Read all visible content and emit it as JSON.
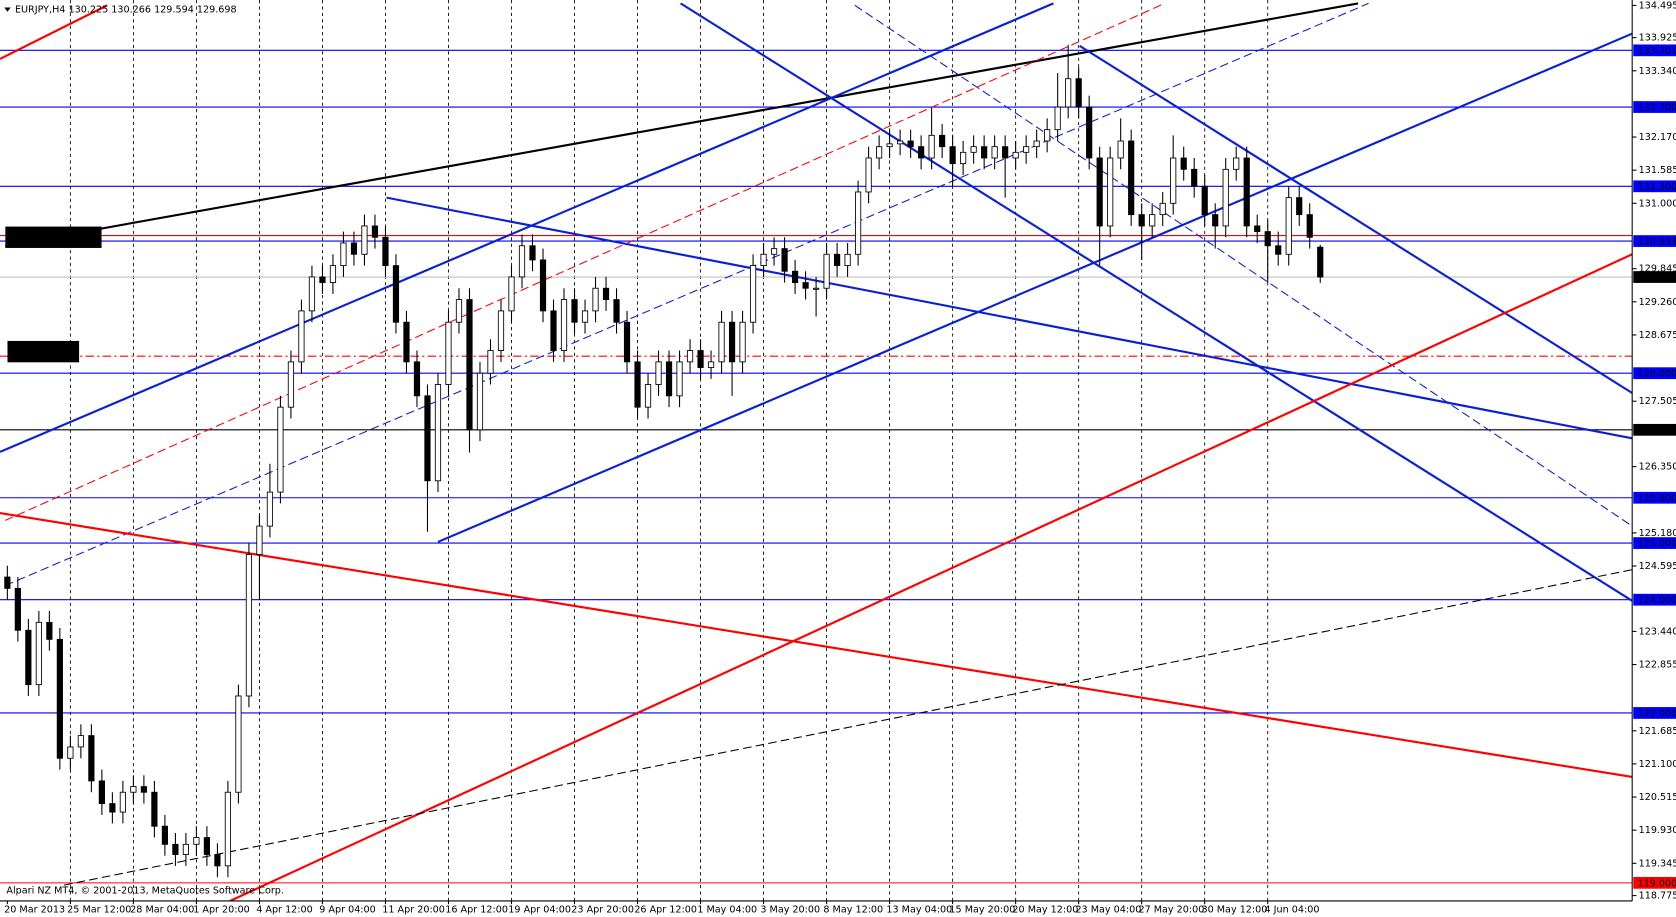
{
  "chart_data": {
    "type": "candlestick",
    "title": "EURJPY,H4  130.225 130.266 129.594 129.698",
    "annotations": [
      "Alpari NZ MT4, © 2001-2013, MetaQuotes Software Corp."
    ],
    "categories": [
      "20 Mar 2013",
      null,
      null,
      null,
      null,
      null,
      "25 Mar 12:00",
      null,
      null,
      null,
      null,
      null,
      "28 Mar 04:00",
      null,
      null,
      null,
      null,
      null,
      "1 Apr 20:00",
      null,
      null,
      null,
      null,
      null,
      "4 Apr 12:00",
      null,
      null,
      null,
      null,
      null,
      "9 Apr 04:00",
      null,
      null,
      null,
      null,
      null,
      "11 Apr 20:00",
      null,
      null,
      null,
      null,
      null,
      "16 Apr 12:00",
      null,
      null,
      null,
      null,
      null,
      "19 Apr 04:00",
      null,
      null,
      null,
      null,
      null,
      "23 Apr 20:00",
      null,
      null,
      null,
      null,
      null,
      "26 Apr 12:00",
      null,
      null,
      null,
      null,
      null,
      "1 May 04:00",
      null,
      null,
      null,
      null,
      null,
      "3 May 20:00",
      null,
      null,
      null,
      null,
      null,
      "8 May 12:00",
      null,
      null,
      null,
      null,
      null,
      "13 May 04:00",
      null,
      null,
      null,
      null,
      null,
      "15 May 20:00",
      null,
      null,
      null,
      null,
      null,
      "20 May 12:00",
      null,
      null,
      null,
      null,
      null,
      "23 May 04:00",
      null,
      null,
      null,
      null,
      null,
      "27 May 20:00",
      null,
      null,
      null,
      null,
      null,
      "30 May 12:00",
      null,
      null,
      null,
      null,
      null,
      "4 Jun 04:00",
      null,
      null,
      null,
      null,
      null
    ],
    "open": [
      124.4,
      124.2,
      123.46,
      122.5,
      123.6,
      123.3,
      121.2,
      121.4,
      121.6,
      120.8,
      120.4,
      120.25,
      120.6,
      120.7,
      120.6,
      120.0,
      119.68,
      119.5,
      119.68,
      119.8,
      119.5,
      119.3,
      120.6,
      122.3,
      124.8,
      125.3,
      125.9,
      127.4,
      128.2,
      129.1,
      129.7,
      129.6,
      129.9,
      130.3,
      130.1,
      130.6,
      130.4,
      129.9,
      128.9,
      128.2,
      127.6,
      126.1,
      127.8,
      128.9,
      129.3,
      127.0,
      128.0,
      128.4,
      129.1,
      129.7,
      130.25,
      130.0,
      129.1,
      128.4,
      129.3,
      128.9,
      129.1,
      129.5,
      129.3,
      128.9,
      128.2,
      127.4,
      127.8,
      128.2,
      127.6,
      128.2,
      128.4,
      128.1,
      128.2,
      128.9,
      128.2,
      128.9,
      129.9,
      130.1,
      130.2,
      129.8,
      129.6,
      129.5,
      129.5,
      130.1,
      129.9,
      130.1,
      131.2,
      131.8,
      132.0,
      132.05,
      132.1,
      132.0,
      131.8,
      132.2,
      132.0,
      131.7,
      131.9,
      132.0,
      131.8,
      132.0,
      131.8,
      131.9,
      132.0,
      132.1,
      132.3,
      132.7,
      133.2,
      132.7,
      131.8,
      130.6,
      131.8,
      132.1,
      130.8,
      130.6,
      130.8,
      131.0,
      131.8,
      131.6,
      131.3,
      130.8,
      130.6,
      131.6,
      131.8,
      130.6,
      130.5,
      130.25,
      130.1,
      131.1,
      130.8,
      130.225
    ],
    "high": [
      124.6,
      124.4,
      123.66,
      123.8,
      123.8,
      123.5,
      121.6,
      121.8,
      121.8,
      121.0,
      120.6,
      120.8,
      120.9,
      120.9,
      120.8,
      120.2,
      119.88,
      119.88,
      120.0,
      120.0,
      119.7,
      120.8,
      122.5,
      125.0,
      125.5,
      126.4,
      127.6,
      128.4,
      129.3,
      129.9,
      129.9,
      130.1,
      130.5,
      130.5,
      130.8,
      130.8,
      130.6,
      130.1,
      129.1,
      128.4,
      127.8,
      128.0,
      129.1,
      129.5,
      129.5,
      128.2,
      128.6,
      129.3,
      129.9,
      130.45,
      130.45,
      130.2,
      129.3,
      129.5,
      129.5,
      129.3,
      129.7,
      129.7,
      129.5,
      129.1,
      128.4,
      128.0,
      128.4,
      128.4,
      128.4,
      128.6,
      128.6,
      128.4,
      129.1,
      129.1,
      129.1,
      130.1,
      130.3,
      130.4,
      130.4,
      130.0,
      129.8,
      129.7,
      130.3,
      130.3,
      130.3,
      131.4,
      132.0,
      132.2,
      132.3,
      132.3,
      132.3,
      132.2,
      132.7,
      132.4,
      132.2,
      132.1,
      132.2,
      132.2,
      132.2,
      132.2,
      132.1,
      132.2,
      132.3,
      132.5,
      133.3,
      133.8,
      133.4,
      132.9,
      132.0,
      132.0,
      132.5,
      132.3,
      131.0,
      131.0,
      131.2,
      132.2,
      132.0,
      131.8,
      131.5,
      131.0,
      131.8,
      132.0,
      132.0,
      130.8,
      130.7,
      130.5,
      131.3,
      131.3,
      131.0,
      130.266
    ],
    "low": [
      124.0,
      123.26,
      122.3,
      122.3,
      123.1,
      121.0,
      121.0,
      121.2,
      120.6,
      120.2,
      120.05,
      120.05,
      120.4,
      120.4,
      119.8,
      119.48,
      119.3,
      119.3,
      119.48,
      119.3,
      119.1,
      119.1,
      120.4,
      122.1,
      124.0,
      125.1,
      125.7,
      127.2,
      128.0,
      128.9,
      129.4,
      129.4,
      129.7,
      129.9,
      129.9,
      130.2,
      129.7,
      128.7,
      128.0,
      127.4,
      125.2,
      125.9,
      127.6,
      128.7,
      126.6,
      126.8,
      127.8,
      128.2,
      128.9,
      129.5,
      129.8,
      128.9,
      128.2,
      128.2,
      128.7,
      128.7,
      128.9,
      129.1,
      128.7,
      128.0,
      127.2,
      127.2,
      127.6,
      127.4,
      127.4,
      128.0,
      127.9,
      127.9,
      128.0,
      127.6,
      128.0,
      128.7,
      129.7,
      129.9,
      129.6,
      129.4,
      129.3,
      129.0,
      129.3,
      129.7,
      129.7,
      129.9,
      131.0,
      131.6,
      131.8,
      131.85,
      131.8,
      131.6,
      131.6,
      131.8,
      131.3,
      131.5,
      131.7,
      131.6,
      131.6,
      131.1,
      131.6,
      131.7,
      131.8,
      131.9,
      132.1,
      132.5,
      132.5,
      131.6,
      129.9,
      130.4,
      131.6,
      130.6,
      130.0,
      130.4,
      130.6,
      130.8,
      131.4,
      131.1,
      130.6,
      130.2,
      130.4,
      131.4,
      130.4,
      130.3,
      129.6,
      129.9,
      129.9,
      130.6,
      130.2,
      129.594
    ],
    "close": [
      124.2,
      123.46,
      122.5,
      123.6,
      123.3,
      121.2,
      121.4,
      121.6,
      120.8,
      120.4,
      120.25,
      120.6,
      120.7,
      120.6,
      120.0,
      119.68,
      119.5,
      119.68,
      119.8,
      119.5,
      119.3,
      120.6,
      122.3,
      124.8,
      125.3,
      125.9,
      127.4,
      128.2,
      129.1,
      129.7,
      129.6,
      129.9,
      130.3,
      130.1,
      130.6,
      130.4,
      129.9,
      128.9,
      128.2,
      127.6,
      126.1,
      127.8,
      128.9,
      129.3,
      127.0,
      128.0,
      128.4,
      129.1,
      129.7,
      130.25,
      130.0,
      129.1,
      128.4,
      129.3,
      128.9,
      129.1,
      129.5,
      129.3,
      128.9,
      128.2,
      127.4,
      127.8,
      128.2,
      127.6,
      128.2,
      128.4,
      128.1,
      128.2,
      128.9,
      128.2,
      128.9,
      129.9,
      130.1,
      130.2,
      129.8,
      129.6,
      129.5,
      129.5,
      130.1,
      129.9,
      130.1,
      131.2,
      131.8,
      132.0,
      132.05,
      132.1,
      132.0,
      131.8,
      132.2,
      132.0,
      131.7,
      131.9,
      132.0,
      131.8,
      132.0,
      131.8,
      131.9,
      132.0,
      132.1,
      132.3,
      132.7,
      133.2,
      132.7,
      131.8,
      130.6,
      131.8,
      132.1,
      130.8,
      130.6,
      130.8,
      131.0,
      131.8,
      131.6,
      131.3,
      130.8,
      130.6,
      131.6,
      131.8,
      130.6,
      130.5,
      130.25,
      130.1,
      131.1,
      130.8,
      130.4,
      129.698
    ],
    "up_color": "#ffffff",
    "down_color": "#000000",
    "wick_color": "#000000",
    "xlim": [
      -0.7,
      154.7
    ],
    "ylim": [
      118.68,
      134.59
    ],
    "yticks": [
      134.495,
      133.925,
      {
        "value": 133.34,
        "label": "133.340"
      },
      {
        "value": 132.17,
        "label": "132.170"
      },
      131.585,
      {
        "value": 131.0,
        "label": "131.000"
      },
      129.845,
      {
        "value": 129.26,
        "label": "129.260"
      },
      128.675,
      127.505,
      {
        "value": 126.35,
        "label": "126.350"
      },
      {
        "value": 125.18,
        "label": "125.180"
      },
      124.595,
      {
        "value": 123.44,
        "label": "123.440"
      },
      122.855,
      121.685,
      {
        "value": 121.1,
        "label": "121.100"
      },
      120.515,
      {
        "value": 119.93,
        "label": "119.930"
      },
      119.345,
      118.775
    ],
    "grid": true,
    "levels": [
      {
        "value": 133.701,
        "label": "133.701",
        "color": "#0000ff",
        "style": "solid"
      },
      {
        "value": 132.7,
        "label": "132.700",
        "color": "#0000ff",
        "style": "solid"
      },
      {
        "value": 131.3,
        "label": "131.300",
        "color": "#0000ff",
        "style": "solid"
      },
      {
        "value": 130.43,
        "color": "#ff0000",
        "style": "solid"
      },
      {
        "value": 130.333,
        "label": "130.333",
        "color": "#0000ff",
        "style": "solid"
      },
      {
        "value": 129.698,
        "label": "129.698",
        "color": "#c0c0c0",
        "label_color": "#000000",
        "style": "solid"
      },
      {
        "value": 128.3,
        "color": "#ff0000",
        "style": "dashdot"
      },
      {
        "value": 128.0,
        "label": "128.000",
        "color": "#0000ff",
        "style": "solid"
      },
      {
        "value": 127.0,
        "label": "127.000",
        "color": "#000000",
        "style": "solid"
      },
      {
        "value": 125.8,
        "label": "125.800",
        "color": "#0000ff",
        "style": "solid"
      },
      {
        "value": 125.0,
        "label": "125.000",
        "color": "#0000ff",
        "style": "solid"
      },
      {
        "value": 124.0,
        "label": "124.000",
        "color": "#0000ff",
        "style": "solid"
      },
      {
        "value": 122.0,
        "label": "122.000",
        "color": "#0000ff",
        "style": "solid"
      },
      {
        "value": 119.0,
        "label": "119.000",
        "color": "#ff0000",
        "style": "solid"
      }
    ],
    "trendlines": [
      {
        "x": [
          -0.2,
          128.6
        ],
        "y": [
          130.25,
          134.53
        ],
        "color": "#000000",
        "style": "solid"
      },
      {
        "x": [
          -0.7,
          9.5
        ],
        "y": [
          133.55,
          134.495
        ],
        "color": "#ff0000",
        "style": "solid"
      },
      {
        "x": [
          -0.7,
          99.6
        ],
        "y": [
          126.61,
          134.53
        ],
        "color": "#0a1fd8",
        "style": "solid"
      },
      {
        "x": [
          41.0,
          155.0
        ],
        "y": [
          125.02,
          134.02
        ],
        "color": "#0a1fd8",
        "style": "solid"
      },
      {
        "x": [
          36.1,
          154.7
        ],
        "y": [
          131.1,
          126.85
        ],
        "color": "#0a1fd8",
        "style": "solid"
      },
      {
        "x": [
          64.1,
          154.7
        ],
        "y": [
          134.53,
          123.98
        ],
        "color": "#0a1fd8",
        "style": "solid"
      },
      {
        "x": [
          102.1,
          154.7
        ],
        "y": [
          133.78,
          127.65
        ],
        "color": "#0a1fd8",
        "style": "solid"
      },
      {
        "x": [
          -0.2,
          129.6
        ],
        "y": [
          124.25,
          134.53
        ],
        "color": "#0a1fd8",
        "style": "dash"
      },
      {
        "x": [
          80.7,
          154.7
        ],
        "y": [
          134.495,
          125.3
        ],
        "color": "#0a1fd8",
        "style": "dash"
      },
      {
        "x": [
          -0.2,
          110.2
        ],
        "y": [
          125.4,
          134.53
        ],
        "color": "#ff0000",
        "style": "dash"
      },
      {
        "x": [
          21.2,
          154.7
        ],
        "y": [
          118.68,
          130.1
        ],
        "color": "#ff0000",
        "style": "solid"
      },
      {
        "x": [
          -0.7,
          154.7
        ],
        "y": [
          125.53,
          120.87
        ],
        "color": "#ff0000",
        "style": "solid"
      },
      {
        "x": [
          5.4,
          154.7
        ],
        "y": [
          118.96,
          124.53
        ],
        "color": "#000000",
        "style": "dash"
      }
    ]
  }
}
